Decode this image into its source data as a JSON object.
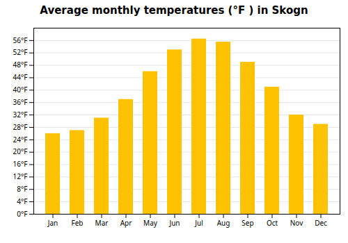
{
  "chart_data": {
    "type": "bar",
    "title": "Average monthly temperatures (°F ) in Skogn",
    "categories": [
      "Jan",
      "Feb",
      "Mar",
      "Apr",
      "May",
      "Jun",
      "Jul",
      "Aug",
      "Sep",
      "Oct",
      "Nov",
      "Dec"
    ],
    "values": [
      26.0,
      27.0,
      31.0,
      37.0,
      46.0,
      53.0,
      56.5,
      55.5,
      49.0,
      41.0,
      32.0,
      29.0
    ],
    "color": "#FFC200",
    "ylim": [
      0,
      60
    ],
    "yticks": [
      {
        "value": 0,
        "label": "0°F"
      },
      {
        "value": 4,
        "label": "4°F"
      },
      {
        "value": 8,
        "label": "8°F"
      },
      {
        "value": 12,
        "label": "12°F"
      },
      {
        "value": 16,
        "label": "16°F"
      },
      {
        "value": 20,
        "label": "20°F"
      },
      {
        "value": 24,
        "label": "24°F"
      },
      {
        "value": 28,
        "label": "28°F"
      },
      {
        "value": 32,
        "label": "32°F"
      },
      {
        "value": 36,
        "label": "36°F"
      },
      {
        "value": 40,
        "label": "40°F"
      },
      {
        "value": 44,
        "label": "44°F"
      },
      {
        "value": 48,
        "label": "48°F"
      },
      {
        "value": 52,
        "label": "52°F"
      },
      {
        "value": 56,
        "label": "56°F"
      }
    ],
    "grid": true
  }
}
